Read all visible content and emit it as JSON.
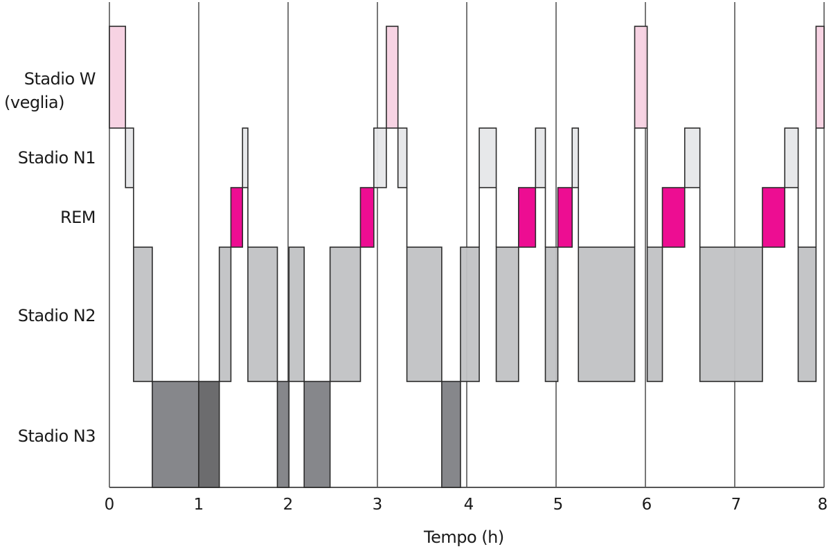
{
  "chart_data": {
    "type": "hypnogram",
    "title": "",
    "xlabel": "Tempo (h)",
    "ylabel": "",
    "xlim": [
      0,
      8
    ],
    "x_ticks": [
      "0",
      "1",
      "2",
      "3",
      "4",
      "5",
      "6",
      "7",
      "8"
    ],
    "grid": "vertical lines at each hour",
    "stages": [
      {
        "key": "W",
        "label_lines": [
          "Stadio W",
          "(veglia)"
        ],
        "color": "#f7d1e2"
      },
      {
        "key": "N1",
        "label_lines": [
          "Stadio N1"
        ],
        "color": "#e6e7e9"
      },
      {
        "key": "REM",
        "label_lines": [
          "REM"
        ],
        "color": "#ec008c"
      },
      {
        "key": "N2",
        "label_lines": [
          "Stadio N2"
        ],
        "color": "#c1c2c4"
      },
      {
        "key": "N3",
        "label_lines": [
          "Stadio N3"
        ],
        "color": "#808185"
      }
    ],
    "segments": [
      {
        "stage": "W",
        "start": 0.0,
        "end": 0.18
      },
      {
        "stage": "N1",
        "start": 0.18,
        "end": 0.27
      },
      {
        "stage": "N2",
        "start": 0.27,
        "end": 0.48
      },
      {
        "stage": "N3",
        "start": 0.48,
        "end": 1.0
      },
      {
        "stage": "N3",
        "start": 1.0,
        "end": 1.23,
        "shade": "dark"
      },
      {
        "stage": "N2",
        "start": 1.23,
        "end": 1.36
      },
      {
        "stage": "REM",
        "start": 1.36,
        "end": 1.49
      },
      {
        "stage": "N1",
        "start": 1.49,
        "end": 1.55
      },
      {
        "stage": "N2",
        "start": 1.55,
        "end": 1.88
      },
      {
        "stage": "N3",
        "start": 1.88,
        "end": 2.01
      },
      {
        "stage": "N2",
        "start": 2.01,
        "end": 2.18
      },
      {
        "stage": "N3",
        "start": 2.18,
        "end": 2.47
      },
      {
        "stage": "N2",
        "start": 2.47,
        "end": 2.81
      },
      {
        "stage": "REM",
        "start": 2.81,
        "end": 2.96
      },
      {
        "stage": "N1",
        "start": 2.96,
        "end": 3.1
      },
      {
        "stage": "W",
        "start": 3.1,
        "end": 3.23
      },
      {
        "stage": "N1",
        "start": 3.23,
        "end": 3.33
      },
      {
        "stage": "N2",
        "start": 3.33,
        "end": 3.72
      },
      {
        "stage": "N3",
        "start": 3.72,
        "end": 3.93
      },
      {
        "stage": "N2",
        "start": 3.93,
        "end": 4.14
      },
      {
        "stage": "N1",
        "start": 4.14,
        "end": 4.33
      },
      {
        "stage": "N2",
        "start": 4.33,
        "end": 4.58
      },
      {
        "stage": "REM",
        "start": 4.58,
        "end": 4.77
      },
      {
        "stage": "N1",
        "start": 4.77,
        "end": 4.88
      },
      {
        "stage": "N2",
        "start": 4.88,
        "end": 5.02
      },
      {
        "stage": "REM",
        "start": 5.02,
        "end": 5.18
      },
      {
        "stage": "N1",
        "start": 5.18,
        "end": 5.25
      },
      {
        "stage": "N2",
        "start": 5.25,
        "end": 5.88
      },
      {
        "stage": "W",
        "start": 5.88,
        "end": 6.02
      },
      {
        "stage": "N2",
        "start": 6.02,
        "end": 6.19
      },
      {
        "stage": "REM",
        "start": 6.19,
        "end": 6.44
      },
      {
        "stage": "N1",
        "start": 6.44,
        "end": 6.61
      },
      {
        "stage": "N2",
        "start": 6.61,
        "end": 7.31
      },
      {
        "stage": "REM",
        "start": 7.31,
        "end": 7.56
      },
      {
        "stage": "N1",
        "start": 7.56,
        "end": 7.71
      },
      {
        "stage": "N2",
        "start": 7.71,
        "end": 7.91
      },
      {
        "stage": "W",
        "start": 7.91,
        "end": 8.0
      }
    ]
  },
  "labels": {
    "stage_w_line1": "Stadio W",
    "stage_w_line2": "(veglia)",
    "stage_n1": "Stadio N1",
    "stage_rem": "REM",
    "stage_n2": "Stadio N2",
    "stage_n3": "Stadio N3",
    "x_axis_title": "Tempo (h)",
    "ticks": [
      "0",
      "1",
      "2",
      "3",
      "4",
      "5",
      "6",
      "7",
      "8"
    ]
  },
  "colors": {
    "W": "#f7d1e2",
    "N1": "#e6e7e9",
    "REM": "#ec008c",
    "N2": "#c1c2c4",
    "N3": "#808185",
    "N3_dark": "#646466",
    "stroke": "#2b2b2b",
    "grid": "#555555"
  }
}
